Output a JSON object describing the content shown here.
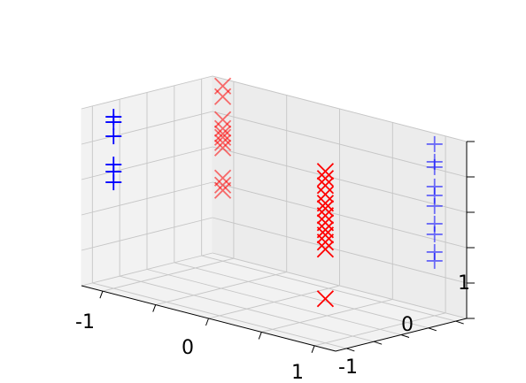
{
  "chart_data": {
    "type": "scatter",
    "title": "",
    "xlabel": "",
    "ylabel": "",
    "zlabel": "",
    "grid": true,
    "xlim": [
      -1.2,
      1.2
    ],
    "ylim": [
      -1.2,
      1.2
    ],
    "zlim": [
      0,
      1
    ],
    "x_ticks": [
      "-1",
      "0",
      "1"
    ],
    "y_ticks": [
      "-1",
      "0",
      "1"
    ],
    "series": [
      {
        "marker": "x",
        "color": "#ff0000",
        "points": [
          {
            "x": -1,
            "y": 1,
            "z": 0.99
          },
          {
            "x": -1,
            "y": 1,
            "z": 0.93
          },
          {
            "x": -1,
            "y": 1,
            "z": 0.8
          },
          {
            "x": -1,
            "y": 1,
            "z": 0.75
          },
          {
            "x": -1,
            "y": 1,
            "z": 0.72
          },
          {
            "x": -1,
            "y": 1,
            "z": 0.7
          },
          {
            "x": -1,
            "y": 1,
            "z": 0.67
          },
          {
            "x": -1,
            "y": 1,
            "z": 0.64
          },
          {
            "x": -1,
            "y": 1,
            "z": 0.47
          },
          {
            "x": -1,
            "y": 1,
            "z": 0.43
          },
          {
            "x": -1,
            "y": 1,
            "z": 0.4
          },
          {
            "x": 1,
            "y": -1,
            "z": 0.97
          },
          {
            "x": 1,
            "y": -1,
            "z": 0.93
          },
          {
            "x": 1,
            "y": -1,
            "z": 0.89
          },
          {
            "x": 1,
            "y": -1,
            "z": 0.84
          },
          {
            "x": 1,
            "y": -1,
            "z": 0.79
          },
          {
            "x": 1,
            "y": -1,
            "z": 0.76
          },
          {
            "x": 1,
            "y": -1,
            "z": 0.72
          },
          {
            "x": 1,
            "y": -1,
            "z": 0.68
          },
          {
            "x": 1,
            "y": -1,
            "z": 0.64
          },
          {
            "x": 1,
            "y": -1,
            "z": 0.61
          },
          {
            "x": 1,
            "y": -1,
            "z": 0.57
          },
          {
            "x": 1,
            "y": -1,
            "z": 0.53
          },
          {
            "x": 1,
            "y": -1,
            "z": 0.25
          }
        ]
      },
      {
        "marker": "+",
        "color": "#0000ff",
        "points": [
          {
            "x": -1,
            "y": -1,
            "z": 0.97
          },
          {
            "x": -1,
            "y": -1,
            "z": 0.94
          },
          {
            "x": -1,
            "y": -1,
            "z": 0.86
          },
          {
            "x": -1,
            "y": -1,
            "z": 0.7
          },
          {
            "x": -1,
            "y": -1,
            "z": 0.66
          },
          {
            "x": -1,
            "y": -1,
            "z": 0.6
          },
          {
            "x": 1,
            "y": 1,
            "z": 0.97
          },
          {
            "x": 1,
            "y": 1,
            "z": 0.87
          },
          {
            "x": 1,
            "y": 1,
            "z": 0.84
          },
          {
            "x": 1,
            "y": 1,
            "z": 0.73
          },
          {
            "x": 1,
            "y": 1,
            "z": 0.68
          },
          {
            "x": 1,
            "y": 1,
            "z": 0.62
          },
          {
            "x": 1,
            "y": 1,
            "z": 0.52
          },
          {
            "x": 1,
            "y": 1,
            "z": 0.46
          },
          {
            "x": 1,
            "y": 1,
            "z": 0.36
          },
          {
            "x": 1,
            "y": 1,
            "z": 0.31
          }
        ]
      }
    ]
  }
}
